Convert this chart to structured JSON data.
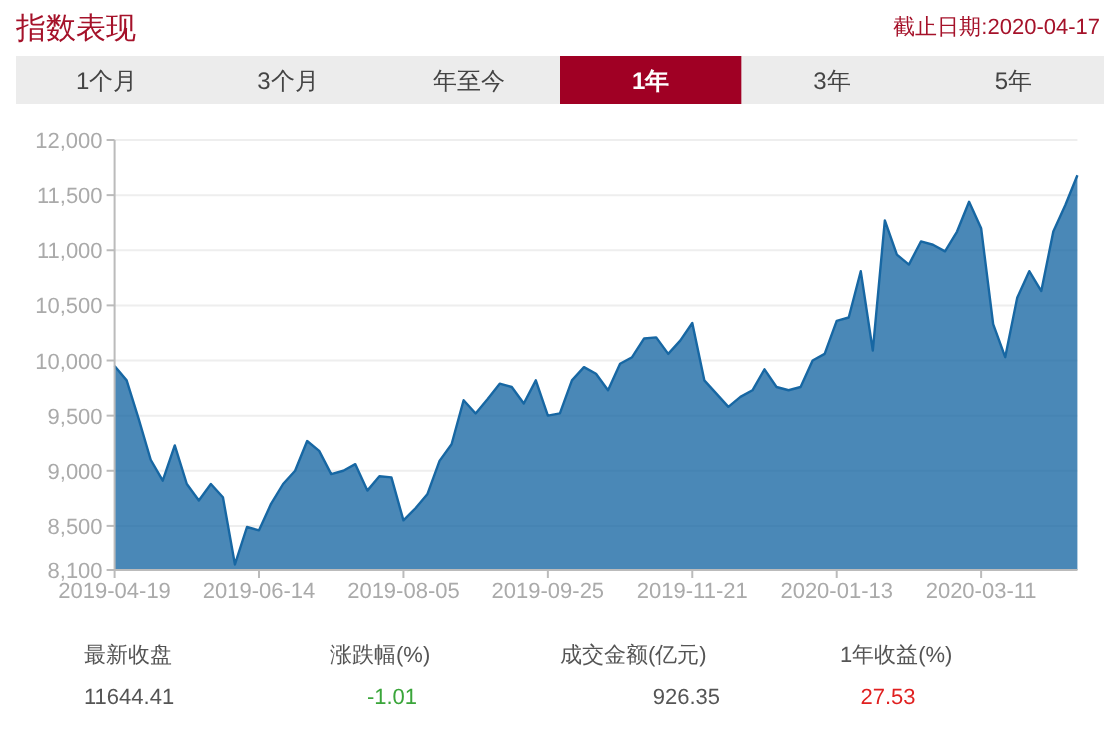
{
  "chart_data": {
    "type": "area",
    "title": "指数表现",
    "subtitle": "截止日期:2020-04-17",
    "annotations": [
      "1个月",
      "3个月",
      "年至今",
      "1年",
      "3年",
      "5年",
      "最新收盘",
      "涨跌幅(%)",
      "成交金额(亿元)",
      "1年收益(%)",
      "11644.41",
      "-1.01",
      "926.35",
      "27.53"
    ],
    "categories": [
      "2019-04-19",
      null,
      null,
      null,
      null,
      null,
      null,
      null,
      null,
      null,
      null,
      null,
      "2019-06-14",
      null,
      null,
      null,
      null,
      null,
      null,
      null,
      null,
      null,
      null,
      null,
      "2019-08-05",
      null,
      null,
      null,
      null,
      null,
      null,
      null,
      null,
      null,
      null,
      null,
      "2019-09-25",
      null,
      null,
      null,
      null,
      null,
      null,
      null,
      null,
      null,
      null,
      null,
      "2019-11-21",
      null,
      null,
      null,
      null,
      null,
      null,
      null,
      null,
      null,
      null,
      null,
      "2020-01-13",
      null,
      null,
      null,
      null,
      null,
      null,
      null,
      null,
      null,
      null,
      null,
      "2020-03-11",
      null,
      null,
      null,
      null,
      null,
      null,
      null,
      null
    ],
    "series": [
      {
        "color": "#1767a3",
        "values": [
          9950,
          9820,
          9470,
          9100,
          8910,
          9230,
          8880,
          8730,
          8880,
          8760,
          8150,
          8490,
          8460,
          8700,
          8880,
          9000,
          9270,
          9180,
          8970,
          9000,
          9060,
          8820,
          8950,
          8940,
          8550,
          8660,
          8790,
          9090,
          9240,
          9640,
          9520,
          9650,
          9790,
          9760,
          9610,
          9820,
          9500,
          9520,
          9820,
          9940,
          9880,
          9730,
          9970,
          10030,
          10200,
          10210,
          10060,
          10180,
          10340,
          9820,
          9700,
          9580,
          9670,
          9730,
          9920,
          9760,
          9730,
          9760,
          10000,
          10060,
          10360,
          10390,
          10810,
          10090,
          11270,
          10960,
          10870,
          11080,
          11050,
          10990,
          11170,
          11440,
          11200,
          10330,
          10030,
          10570,
          10810,
          10630,
          11170,
          11410,
          11680
        ]
      }
    ],
    "ylim": [
      8100,
      12000
    ],
    "yticks": [
      {
        "value": 8100,
        "label": "8,100"
      },
      {
        "value": 8500,
        "label": "8,500"
      },
      {
        "value": 9000,
        "label": "9,000"
      },
      {
        "value": 9500,
        "label": "9,500"
      },
      {
        "value": 10000,
        "label": "10,000"
      },
      {
        "value": 10500,
        "label": "10,500"
      },
      {
        "value": 11000,
        "label": "11,000"
      },
      {
        "value": 11500,
        "label": "11,500"
      },
      {
        "value": 12000,
        "label": "12,000"
      }
    ],
    "grid": "y"
  }
}
